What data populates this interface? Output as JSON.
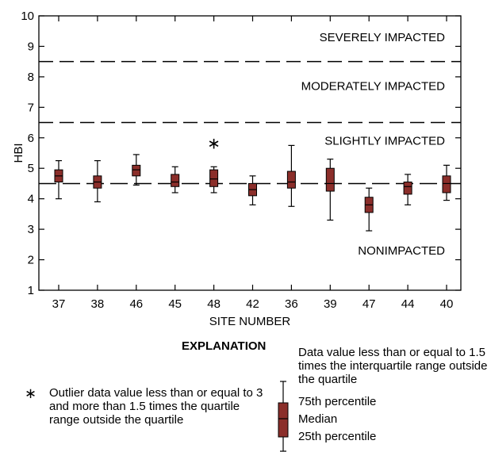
{
  "chart_data": {
    "type": "box",
    "xlabel": "SITE NUMBER",
    "ylabel": "HBI",
    "ylim": [
      1,
      10
    ],
    "yticks": [
      1,
      2,
      3,
      4,
      5,
      6,
      7,
      8,
      9,
      10
    ],
    "categories": [
      "37",
      "38",
      "46",
      "45",
      "48",
      "42",
      "36",
      "39",
      "47",
      "44",
      "40"
    ],
    "boxes": [
      {
        "site": "37",
        "whisker_low": 4.0,
        "q1": 4.55,
        "median": 4.75,
        "q3": 4.95,
        "whisker_high": 5.25
      },
      {
        "site": "38",
        "whisker_low": 3.9,
        "q1": 4.35,
        "median": 4.55,
        "q3": 4.75,
        "whisker_high": 5.25
      },
      {
        "site": "46",
        "whisker_low": 4.45,
        "q1": 4.75,
        "median": 4.95,
        "q3": 5.1,
        "whisker_high": 5.45
      },
      {
        "site": "45",
        "whisker_low": 4.2,
        "q1": 4.4,
        "median": 4.55,
        "q3": 4.8,
        "whisker_high": 5.05
      },
      {
        "site": "48",
        "whisker_low": 4.2,
        "q1": 4.4,
        "median": 4.65,
        "q3": 4.95,
        "whisker_high": 5.05,
        "outliers": [
          5.85
        ]
      },
      {
        "site": "42",
        "whisker_low": 3.8,
        "q1": 4.1,
        "median": 4.3,
        "q3": 4.5,
        "whisker_high": 4.75
      },
      {
        "site": "36",
        "whisker_low": 3.75,
        "q1": 4.35,
        "median": 4.55,
        "q3": 4.9,
        "whisker_high": 5.75
      },
      {
        "site": "39",
        "whisker_low": 3.3,
        "q1": 4.25,
        "median": 4.5,
        "q3": 5.0,
        "whisker_high": 5.3
      },
      {
        "site": "47",
        "whisker_low": 2.95,
        "q1": 3.55,
        "median": 3.8,
        "q3": 4.05,
        "whisker_high": 4.35
      },
      {
        "site": "44",
        "whisker_low": 3.8,
        "q1": 4.15,
        "median": 4.4,
        "q3": 4.55,
        "whisker_high": 4.8
      },
      {
        "site": "40",
        "whisker_low": 3.95,
        "q1": 4.2,
        "median": 4.5,
        "q3": 4.75,
        "whisker_high": 5.1
      }
    ],
    "reference_lines": [
      {
        "y": 8.5,
        "style": "dashed"
      },
      {
        "y": 6.5,
        "style": "dashed"
      },
      {
        "y": 4.5,
        "style": "long-dash"
      }
    ],
    "zone_labels": [
      {
        "text": "SEVERELY IMPACTED",
        "y": 9.3
      },
      {
        "text": "MODERATELY IMPACTED",
        "y": 7.7
      },
      {
        "text": "SLIGHTLY IMPACTED",
        "y": 5.9
      },
      {
        "text": "NONIMPACTED",
        "y": 2.3
      }
    ],
    "box_color": "#8b2e2a",
    "grid": false
  },
  "explanation": {
    "title": "EXPLANATION",
    "outlier_symbol": "∗",
    "outlier_text": "Outlier data value less than or equal to 3 and more than 1.5 times the quartile range outside the quartile",
    "whisker_text": "Data value less than or equal to 1.5 times the interquartile range outside the quartile",
    "p75": "75th percentile",
    "median": "Median",
    "p25": "25th percentile"
  }
}
